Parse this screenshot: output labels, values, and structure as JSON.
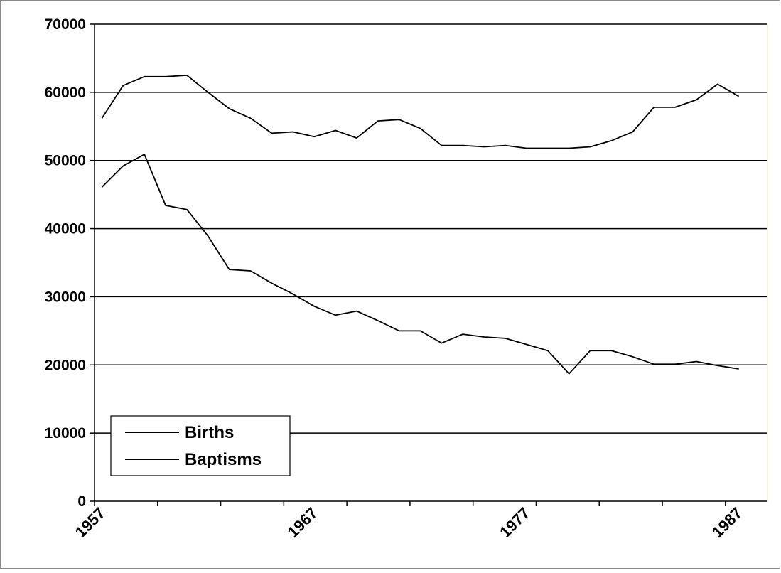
{
  "chart_data": {
    "type": "line",
    "title": "",
    "xlabel": "",
    "ylabel": "",
    "ylim": [
      0,
      70000
    ],
    "y_ticks": [
      "0",
      "10000",
      "20000",
      "30000",
      "40000",
      "50000",
      "60000",
      "70000"
    ],
    "x_tick_labels": [
      "1957",
      "1967",
      "1977",
      "1987"
    ],
    "grid": "horizontal",
    "legend_position": "bottom-left",
    "x": [
      1957,
      1958,
      1959,
      1960,
      1961,
      1962,
      1963,
      1964,
      1965,
      1966,
      1967,
      1968,
      1969,
      1970,
      1971,
      1972,
      1973,
      1974,
      1975,
      1976,
      1977,
      1978,
      1979,
      1980,
      1981,
      1982,
      1983,
      1984,
      1985,
      1986,
      1987,
      1988
    ],
    "series": [
      {
        "name": "Births",
        "values": [
          56200,
          61000,
          62300,
          62300,
          62500,
          60000,
          57600,
          56200,
          54000,
          54200,
          53500,
          54400,
          53300,
          55800,
          56000,
          54700,
          52200,
          52200,
          52000,
          52200,
          51800,
          51800,
          51800,
          52000,
          52900,
          54200,
          57800,
          57800,
          58900,
          61200,
          59400,
          null
        ]
      },
      {
        "name": "Baptisms",
        "values": [
          46100,
          49200,
          50900,
          43400,
          42800,
          38900,
          34000,
          33800,
          32000,
          30400,
          28600,
          27300,
          27900,
          26500,
          25000,
          25000,
          23200,
          24500,
          24100,
          23900,
          23000,
          22100,
          18700,
          22100,
          22100,
          21200,
          20100,
          20100,
          20500,
          19900,
          19400,
          null
        ]
      }
    ],
    "colors": {
      "line": "#000000",
      "grid": "#000000",
      "plot_border": "#e8e4b0",
      "frame": "#888888"
    }
  }
}
